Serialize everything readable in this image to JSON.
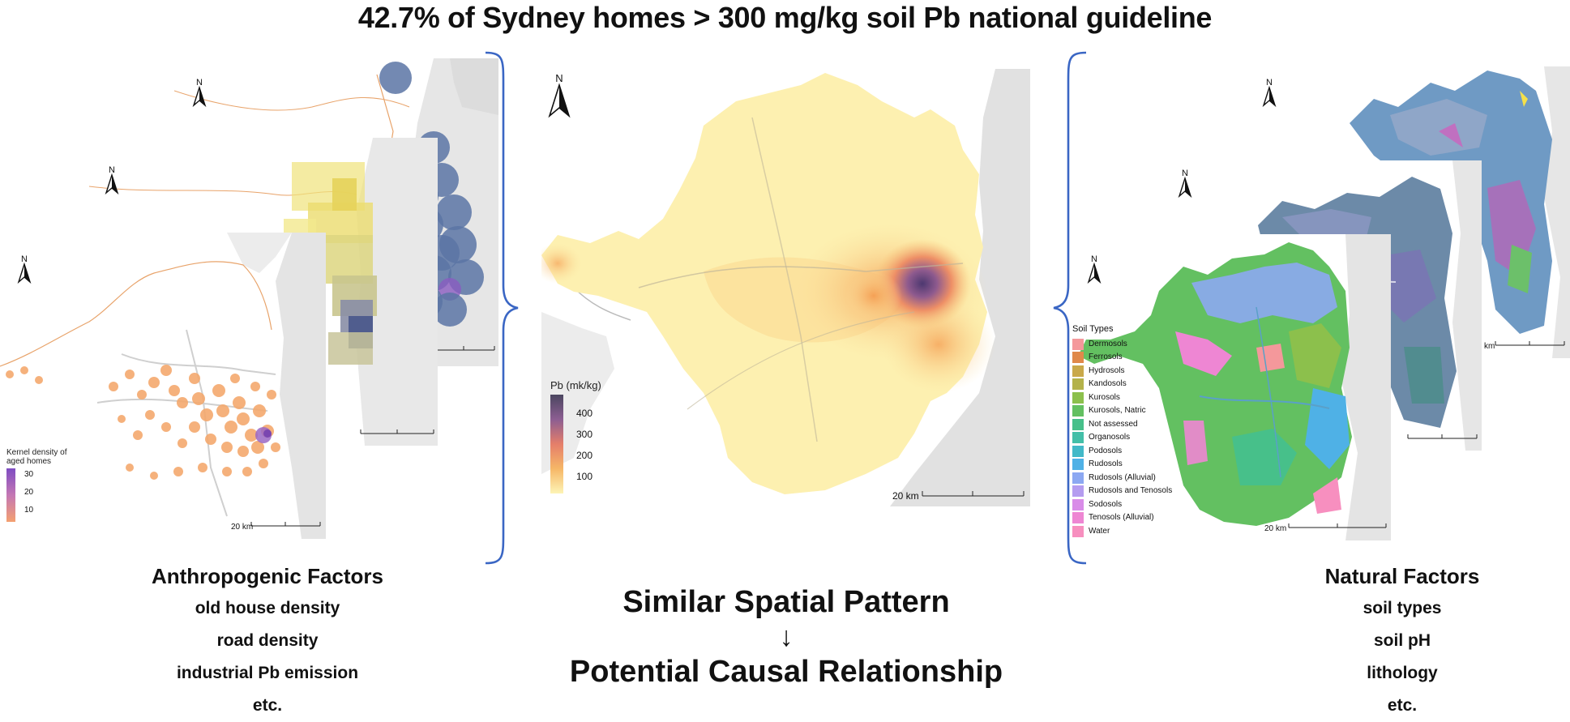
{
  "title": "42.7% of Sydney homes > 300 mg/kg soil Pb national guideline",
  "left_panel": {
    "heading": "Anthropogenic Factors",
    "items": [
      "old house density",
      "road density",
      "industrial Pb emission",
      "etc."
    ],
    "front_map": {
      "legend_title": "Kernel density of aged homes",
      "legend_ticks": [
        "30",
        "20",
        "10"
      ],
      "scale": "20 km"
    },
    "back_scale": "km"
  },
  "center_panel": {
    "legend_title": "Pb (mk/kg)",
    "legend_ticks": [
      "400",
      "300",
      "200",
      "100"
    ],
    "scale": "20 km",
    "caption_top": "Similar Spatial Pattern",
    "arrow": "↓",
    "caption_bottom": "Potential Causal Relationship"
  },
  "right_panel": {
    "heading": "Natural Factors",
    "items": [
      "soil types",
      "soil pH",
      "lithology",
      "etc."
    ],
    "front_map": {
      "legend_title": "Soil Types",
      "legend": [
        {
          "label": "Dermosols",
          "color": "#f4989b"
        },
        {
          "label": "Ferrosols",
          "color": "#e0894a"
        },
        {
          "label": "Hydrosols",
          "color": "#c9a94a"
        },
        {
          "label": "Kandosols",
          "color": "#b4b24a"
        },
        {
          "label": "Kurosols",
          "color": "#8cc04c"
        },
        {
          "label": "Kurosols, Natric",
          "color": "#63c061"
        },
        {
          "label": "Not assessed",
          "color": "#47c08a"
        },
        {
          "label": "Organosols",
          "color": "#43bfa8"
        },
        {
          "label": "Podosols",
          "color": "#42b9c8"
        },
        {
          "label": "Rudosols",
          "color": "#4fb1e6"
        },
        {
          "label": "Rudosols (Alluvial)",
          "color": "#8ca8f2"
        },
        {
          "label": "Rudosols and Tenosols",
          "color": "#b59cf0"
        },
        {
          "label": "Sodosols",
          "color": "#d98ce8"
        },
        {
          "label": "Tenosols (Alluvial)",
          "color": "#ee86d3"
        },
        {
          "label": "Water",
          "color": "#f78fbf"
        }
      ],
      "scale": "20 km"
    },
    "back_scale": "km"
  },
  "north_label": "N",
  "colors": {
    "brace": "#3a66c4",
    "pb_low": "#fdf3b8",
    "pb_mid": "#f4a052",
    "pb_high": "#5b3f78",
    "kernel_high": "#8a5bc0",
    "kernel_low": "#f4a070"
  }
}
